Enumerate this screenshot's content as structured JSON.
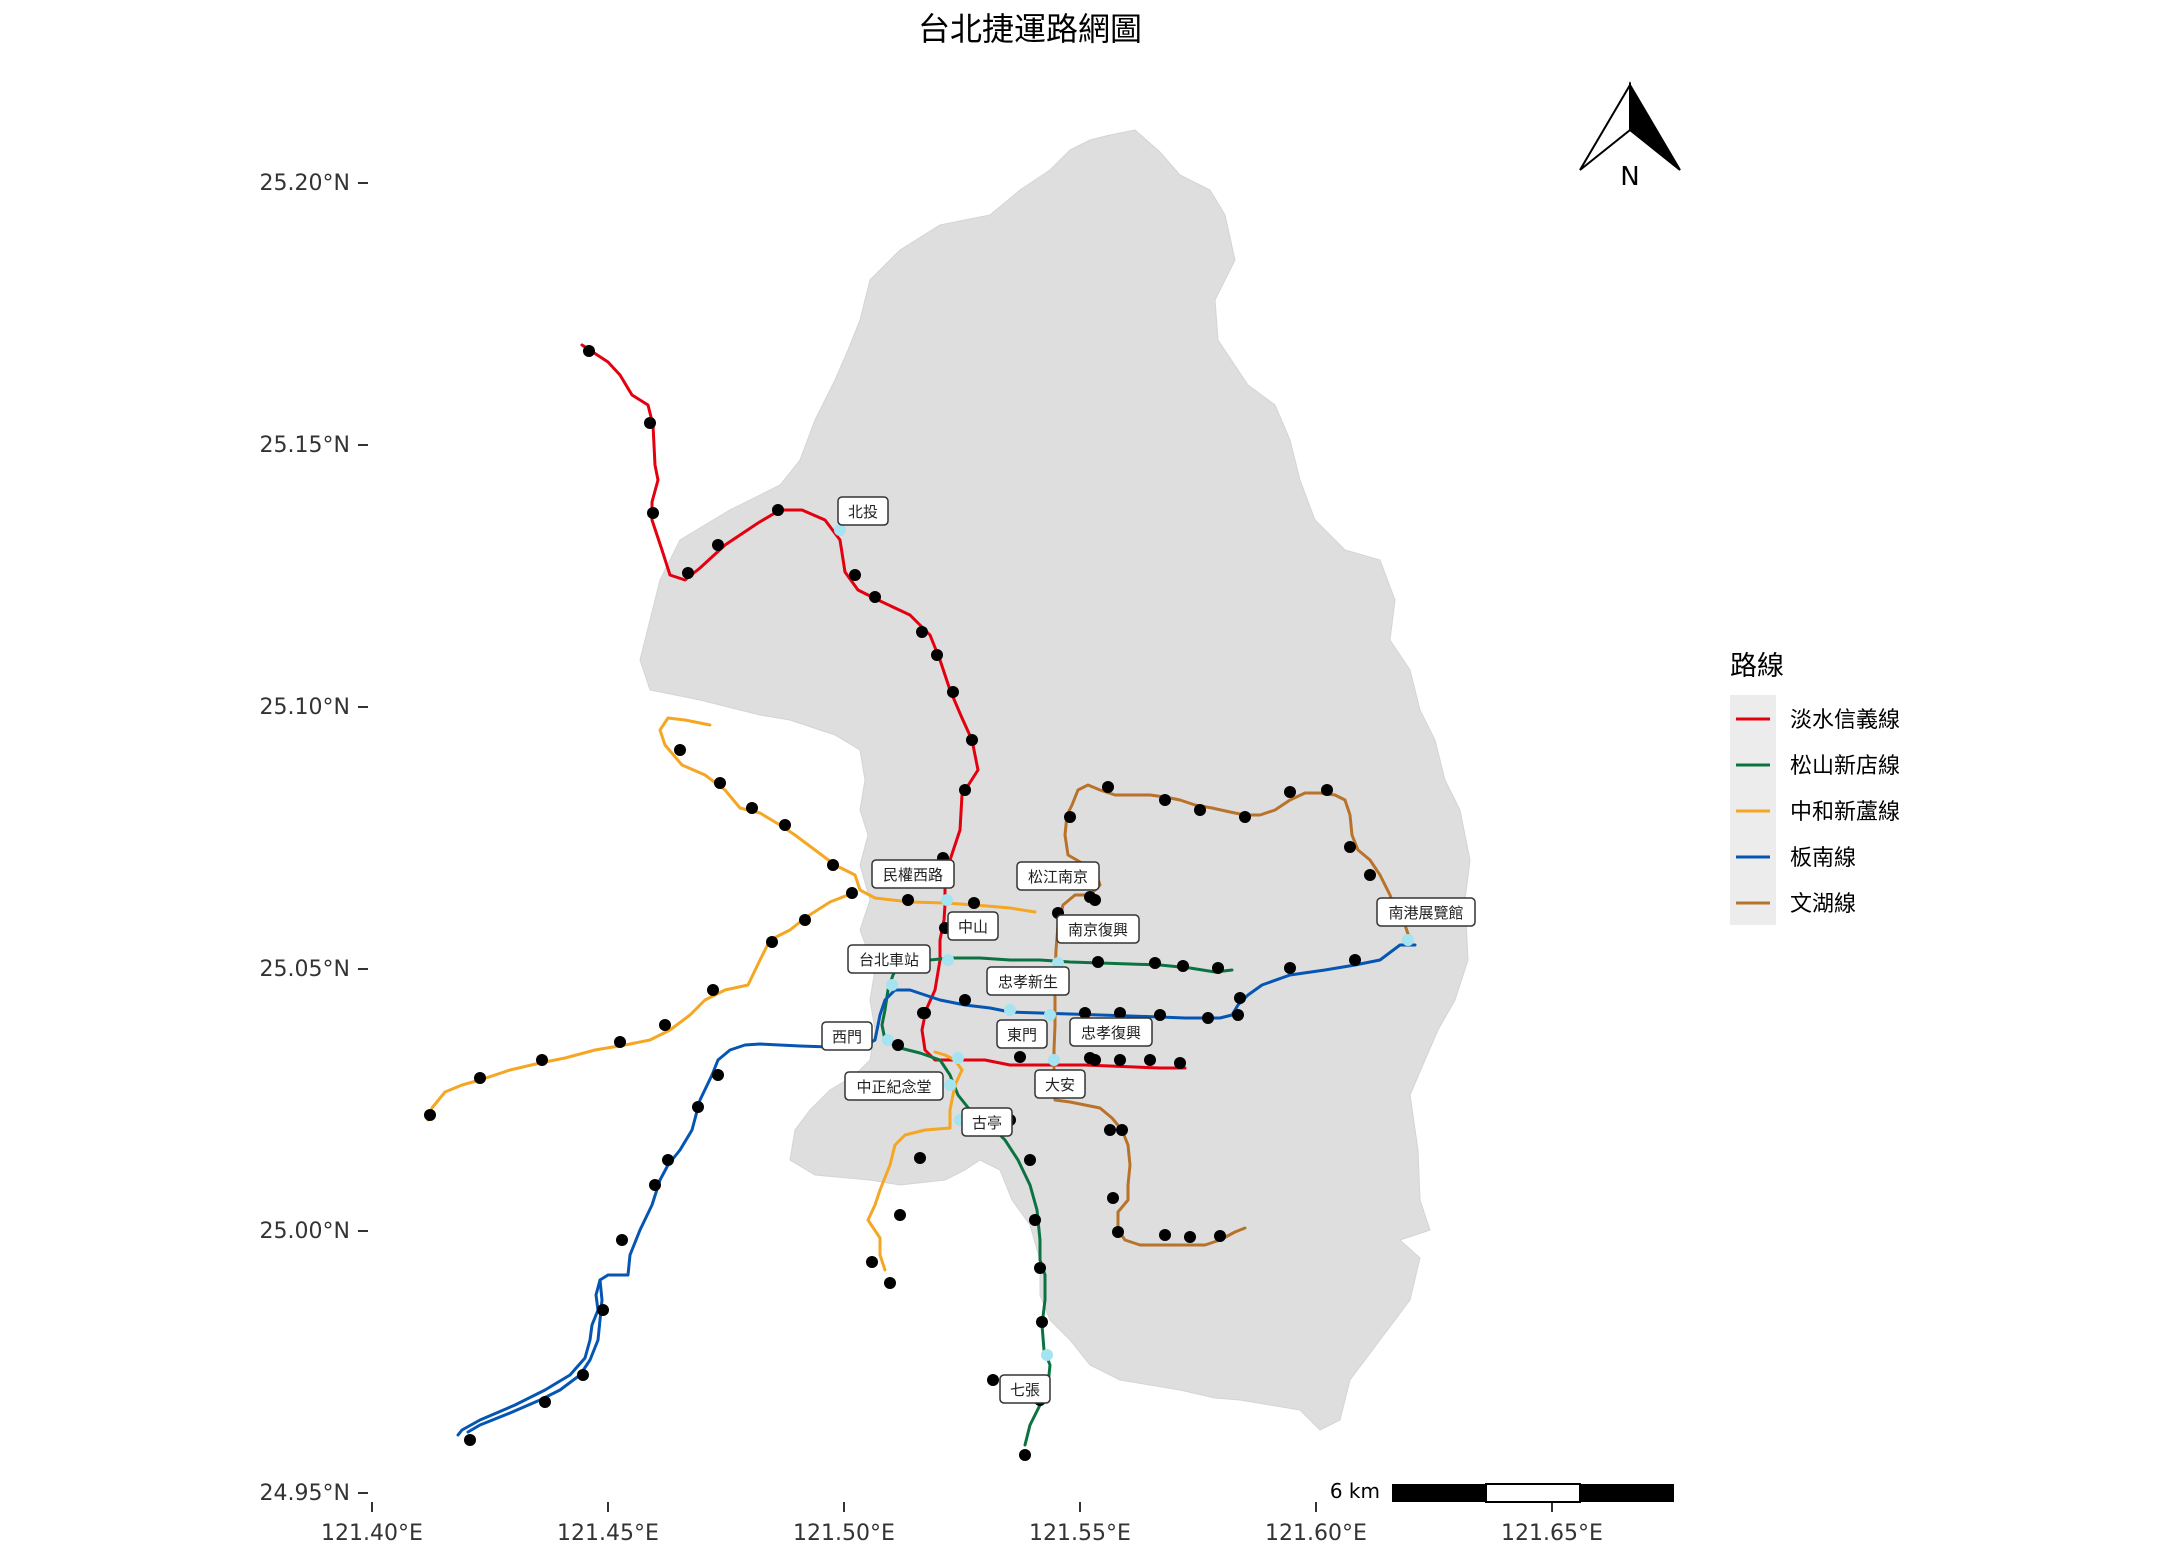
{
  "title": "台北捷運路網圖",
  "axes": {
    "y_ticks": [
      "25.20°N",
      "25.15°N",
      "25.10°N",
      "25.05°N",
      "25.00°N",
      "24.95°N"
    ],
    "x_ticks": [
      "121.40°E",
      "121.45°E",
      "121.50°E",
      "121.55°E",
      "121.60°E",
      "121.65°E"
    ]
  },
  "north_arrow": {
    "label": "N"
  },
  "scale_bar": {
    "label": "6 km"
  },
  "legend": {
    "title": "路線",
    "items": [
      {
        "name": "淡水信義線",
        "color": "#e3000f"
      },
      {
        "name": "松山新店線",
        "color": "#0b7342"
      },
      {
        "name": "中和新蘆線",
        "color": "#f5a623"
      },
      {
        "name": "板南線",
        "color": "#0556b2"
      },
      {
        "name": "文湖線",
        "color": "#b8732a"
      }
    ]
  },
  "station_labels": [
    "北投",
    "民權西路",
    "松江南京",
    "中山",
    "南京復興",
    "南港展覽館",
    "台北車站",
    "忠孝新生",
    "西門",
    "東門",
    "忠孝復興",
    "中正紀念堂",
    "大安",
    "古亭",
    "七張"
  ]
}
